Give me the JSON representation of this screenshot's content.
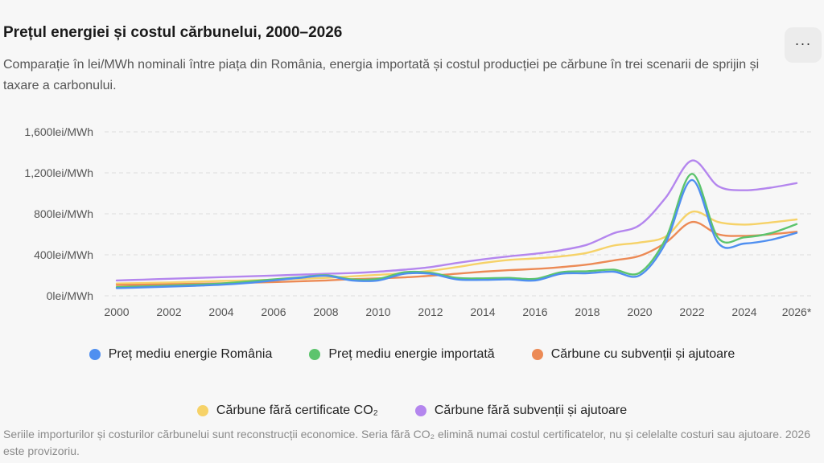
{
  "header": {
    "title": "Prețul energiei și costul cărbunelui, 2000–2026",
    "subtitle": "Comparație în lei/MWh nominali între piața din România, energia importată și costul producției pe cărbune în trei scenarii de sprijin și taxare a carbonului.",
    "menu_icon": "ellipsis-icon",
    "menu_label": "···"
  },
  "footnote": "Seriile importurilor și costurilor cărbunelui sunt reconstrucții economice. Seria fără CO₂ elimină numai costul certificatelor, nu și celelalte costuri sau ajutoare. 2026 este provizoriu.",
  "chart_data": {
    "type": "line",
    "title": "Prețul energiei și costul cărbunelui, 2000–2026",
    "ylabel": "",
    "xlabel": "",
    "unit": "lei/MWh",
    "ylim": [
      0,
      1600
    ],
    "yticks": [
      0,
      400,
      800,
      1200,
      1600
    ],
    "ytick_labels": [
      "0lei/MWh",
      "400lei/MWh",
      "800lei/MWh",
      "1,200lei/MWh",
      "1,600lei/MWh"
    ],
    "x": [
      2000,
      2001,
      2002,
      2003,
      2004,
      2005,
      2006,
      2007,
      2008,
      2009,
      2010,
      2011,
      2012,
      2013,
      2014,
      2015,
      2016,
      2017,
      2018,
      2019,
      2020,
      2021,
      2022,
      2023,
      2024,
      2025,
      2026
    ],
    "xticks": [
      2000,
      2002,
      2004,
      2006,
      2008,
      2010,
      2012,
      2014,
      2016,
      2018,
      2020,
      2022,
      2024,
      2026
    ],
    "xtick_labels": [
      "2000",
      "2002",
      "2004",
      "2006",
      "2008",
      "2010",
      "2012",
      "2014",
      "2016",
      "2018",
      "2020",
      "2022",
      "2024",
      "2026*"
    ],
    "grid": true,
    "legend_position": "bottom",
    "series": [
      {
        "name": "Preț mediu energie România",
        "color": "#4f8ff0",
        "values": [
          75,
          82,
          90,
          98,
          108,
          125,
          150,
          175,
          195,
          150,
          150,
          215,
          215,
          160,
          155,
          160,
          150,
          215,
          220,
          235,
          200,
          520,
          1130,
          515,
          510,
          545,
          615
        ]
      },
      {
        "name": "Preț mediu energie importată",
        "color": "#5cc46d",
        "values": [
          85,
          92,
          100,
          108,
          120,
          140,
          160,
          180,
          200,
          160,
          165,
          230,
          225,
          175,
          170,
          175,
          165,
          230,
          240,
          255,
          225,
          560,
          1190,
          565,
          570,
          610,
          700
        ]
      },
      {
        "name": "Cărbune cu subvenții și ajutoare",
        "color": "#ec8a55",
        "values": [
          105,
          108,
          112,
          118,
          122,
          128,
          134,
          142,
          150,
          162,
          170,
          180,
          195,
          215,
          235,
          250,
          262,
          280,
          305,
          345,
          390,
          520,
          720,
          600,
          585,
          600,
          625
        ]
      },
      {
        "name": "Cărbune fără certificate CO₂",
        "color": "#f6d268",
        "values": [
          120,
          125,
          130,
          138,
          145,
          150,
          158,
          166,
          175,
          190,
          205,
          220,
          245,
          280,
          320,
          350,
          365,
          385,
          420,
          490,
          520,
          580,
          820,
          720,
          695,
          715,
          745
        ]
      },
      {
        "name": "Cărbune fără subvenții și ajutoare",
        "color": "#b486ee",
        "values": [
          150,
          158,
          166,
          174,
          182,
          190,
          198,
          206,
          215,
          222,
          235,
          255,
          280,
          320,
          355,
          385,
          410,
          445,
          500,
          610,
          690,
          960,
          1320,
          1070,
          1030,
          1055,
          1100
        ]
      }
    ]
  }
}
